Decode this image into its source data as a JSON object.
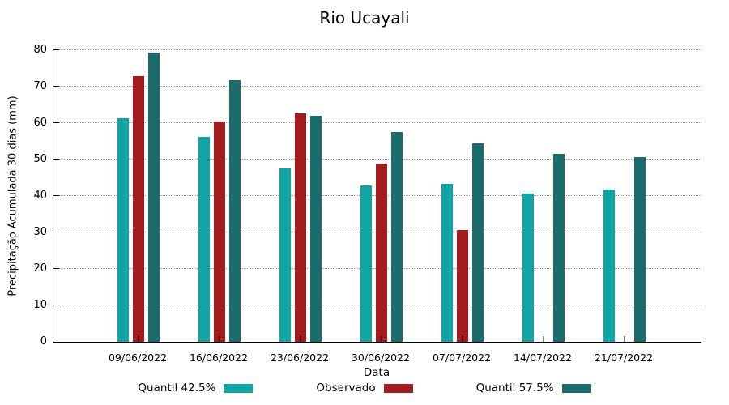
{
  "chart_data": {
    "type": "bar",
    "title": "Rio Ucayali",
    "xlabel": "Data",
    "ylabel": "Precipitação Acumulada 30 dias (mm)",
    "ylim": [
      0,
      80
    ],
    "ytick_step": 10,
    "grid": true,
    "legend_position": "bottom",
    "categories": [
      "09/06/2022",
      "16/06/2022",
      "23/06/2022",
      "30/06/2022",
      "07/07/2022",
      "14/07/2022",
      "21/07/2022"
    ],
    "series": [
      {
        "name": "Quantil 42.5%",
        "color": "#10A5A5",
        "values": [
          61.4,
          56.3,
          47.5,
          42.9,
          43.3,
          40.6,
          41.8
        ]
      },
      {
        "name": "Observado",
        "color": "#A11C1C",
        "values": [
          73.0,
          60.4,
          62.6,
          48.8,
          30.6,
          null,
          null
        ]
      },
      {
        "name": "Quantil 57.5%",
        "color": "#1B6B6B",
        "values": [
          79.4,
          71.8,
          62.1,
          57.5,
          54.4,
          51.5,
          50.6
        ]
      }
    ]
  }
}
